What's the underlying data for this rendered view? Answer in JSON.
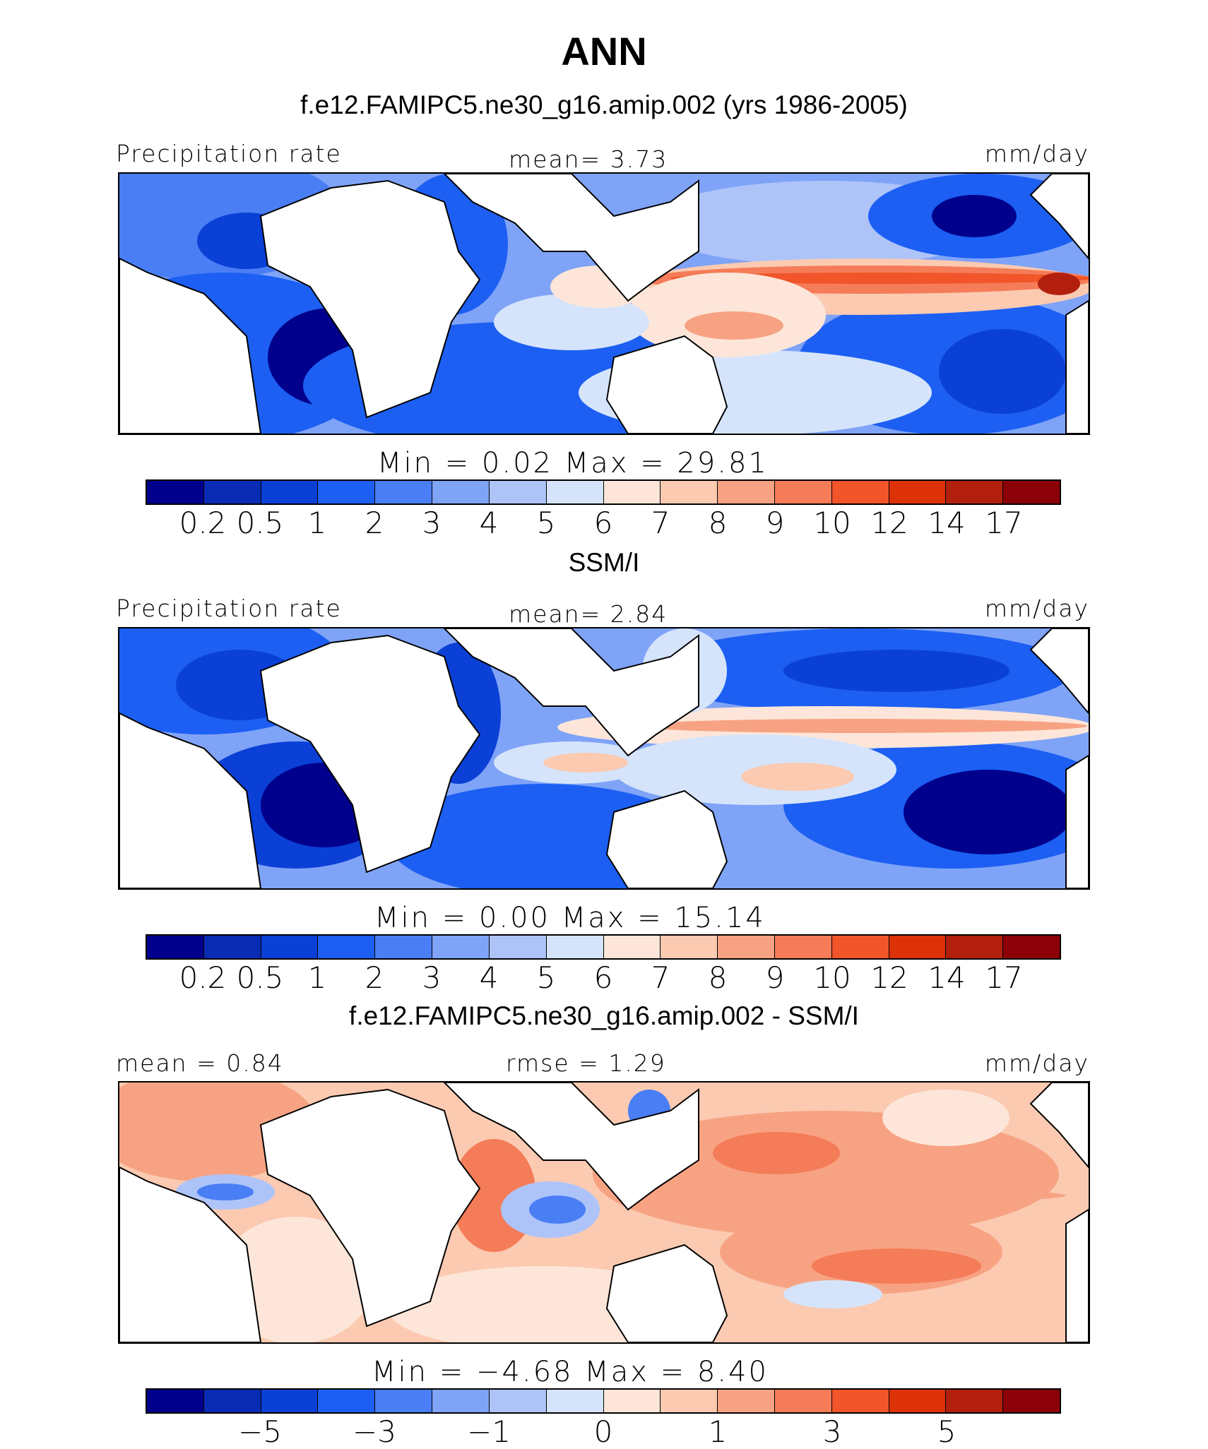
{
  "figure": {
    "title": "ANN"
  },
  "panels": [
    {
      "subtitle": "f.e12.FAMIPC5.ne30_g16.amip.002 (yrs 1986-2005)",
      "left_label": "Precipitation rate",
      "center_label": "mean=    3.73",
      "right_label": "mm/day",
      "minmax": "Min  =    0.02  Max  =   29.81",
      "ticks": [
        "0.2",
        "0.5",
        "1",
        "2",
        "3",
        "4",
        "5",
        "6",
        "7",
        "8",
        "9",
        "10",
        "12",
        "14",
        "17"
      ],
      "colors": [
        "#00008c",
        "#0a2bb4",
        "#0b40d6",
        "#1c5ff2",
        "#4a7ef5",
        "#7fa3f7",
        "#aec4f9",
        "#d5e4fb",
        "#fde6d9",
        "#fbcab1",
        "#f7a383",
        "#f57c58",
        "#f15529",
        "#dd3208",
        "#b2200d",
        "#8c0008"
      ]
    },
    {
      "subtitle": "SSM/I",
      "left_label": "Precipitation rate",
      "center_label": "mean=    2.84",
      "right_label": "mm/day",
      "minmax": "Min  =    0.00  Max  =   15.14",
      "ticks": [
        "0.2",
        "0.5",
        "1",
        "2",
        "3",
        "4",
        "5",
        "6",
        "7",
        "8",
        "9",
        "10",
        "12",
        "14",
        "17"
      ],
      "colors": [
        "#00008c",
        "#0a2bb4",
        "#0b40d6",
        "#1c5ff2",
        "#4a7ef5",
        "#7fa3f7",
        "#aec4f9",
        "#d5e4fb",
        "#fde6d9",
        "#fbcab1",
        "#f7a383",
        "#f57c58",
        "#f15529",
        "#dd3208",
        "#b2200d",
        "#8c0008"
      ]
    },
    {
      "subtitle": "f.e12.FAMIPC5.ne30_g16.amip.002 - SSM/I",
      "left_label": "mean  =    0.84",
      "center_label": "rmse  =    1.29",
      "right_label": "mm/day",
      "minmax": "Min  =   −4.68  Max  =    8.40",
      "ticks": [
        "−5",
        "−3",
        "−1",
        "0",
        "1",
        "3",
        "5"
      ],
      "colors": [
        "#00008c",
        "#0a2bb4",
        "#0b40d6",
        "#1c5ff2",
        "#4a7ef5",
        "#7fa3f7",
        "#aec4f9",
        "#d5e4fb",
        "#fde6d9",
        "#fbcab1",
        "#f7a383",
        "#f57c58",
        "#f15529",
        "#dd3208",
        "#b2200d",
        "#8c0008"
      ]
    }
  ],
  "chart_data": [
    {
      "type": "heatmap",
      "title": "f.e12.FAMIPC5.ne30_g16.amip.002 (yrs 1986-2005)",
      "variable": "Precipitation rate",
      "units": "mm/day",
      "mean": 3.73,
      "min": 0.02,
      "max": 29.81,
      "contour_levels": [
        0.2,
        0.5,
        1,
        2,
        3,
        4,
        5,
        6,
        7,
        8,
        9,
        10,
        12,
        14,
        17
      ]
    },
    {
      "type": "heatmap",
      "title": "SSM/I",
      "variable": "Precipitation rate",
      "units": "mm/day",
      "mean": 2.84,
      "min": 0.0,
      "max": 15.14,
      "contour_levels": [
        0.2,
        0.5,
        1,
        2,
        3,
        4,
        5,
        6,
        7,
        8,
        9,
        10,
        12,
        14,
        17
      ]
    },
    {
      "type": "heatmap",
      "title": "f.e12.FAMIPC5.ne30_g16.amip.002 - SSM/I",
      "units": "mm/day",
      "mean": 0.84,
      "rmse": 1.29,
      "min": -4.68,
      "max": 8.4,
      "tick_labels": [
        -5,
        -3,
        -1,
        0,
        1,
        3,
        5
      ]
    }
  ]
}
